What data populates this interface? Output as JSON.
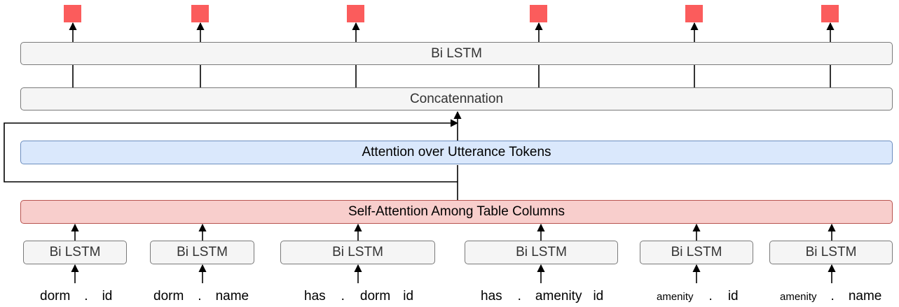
{
  "top_lstm": "Bi LSTM",
  "concat": "Concatennation",
  "attention": "Attention over Utterance Tokens",
  "self_attention": "Self-Attention Among Table Columns",
  "column_lstm_label": "Bi LSTM",
  "columns": [
    {
      "tokens": [
        "dorm",
        ".",
        "id"
      ]
    },
    {
      "tokens": [
        "dorm",
        ".",
        "name"
      ]
    },
    {
      "tokens": [
        "has",
        ".",
        "dorm",
        "id"
      ]
    },
    {
      "tokens": [
        "has",
        ".",
        "amenity",
        "id"
      ]
    },
    {
      "tokens": [
        "amenity",
        ".",
        "id"
      ]
    },
    {
      "tokens": [
        "amenity",
        ".",
        "name"
      ]
    }
  ],
  "colors": {
    "output_square": "#fb5c5c",
    "gray_box": "#f5f5f5",
    "attention_box": "#dae8fc",
    "self_attention_box": "#f8cecc"
  }
}
